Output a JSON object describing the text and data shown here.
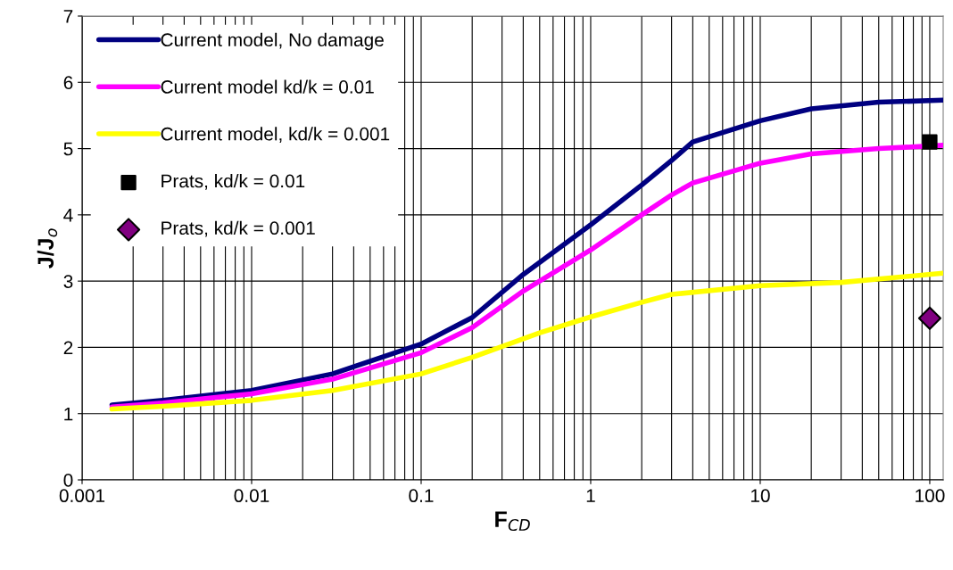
{
  "chart_data": {
    "type": "line",
    "xlabel": "F$_{CD}$",
    "ylabel": "J/J$_{o}$",
    "log": "x",
    "xlim": [
      0.001,
      120
    ],
    "xticks": [
      0.001,
      0.01,
      0.1,
      1,
      10,
      100
    ],
    "ylim": [
      0,
      7
    ],
    "yticks": [
      0,
      1,
      2,
      3,
      4,
      5,
      6,
      7
    ],
    "grid": true,
    "legend": "top left",
    "series": [
      {
        "name": "Current model, No damage",
        "color": "#000080",
        "x": [
          0.0015,
          0.003,
          0.01,
          0.03,
          0.1,
          0.2,
          0.4,
          1,
          2,
          3,
          4,
          10,
          20,
          50,
          120
        ],
        "values": [
          1.13,
          1.2,
          1.35,
          1.6,
          2.05,
          2.45,
          3.1,
          3.85,
          4.45,
          4.82,
          5.1,
          5.42,
          5.6,
          5.7,
          5.73
        ]
      },
      {
        "name": "Current model kd/k = 0.01",
        "color": "#ff00ff",
        "x": [
          0.0015,
          0.003,
          0.01,
          0.03,
          0.1,
          0.2,
          0.4,
          1,
          2,
          3,
          4,
          10,
          20,
          50,
          120
        ],
        "values": [
          1.1,
          1.16,
          1.3,
          1.52,
          1.92,
          2.3,
          2.85,
          3.47,
          4.0,
          4.3,
          4.48,
          4.78,
          4.92,
          5.0,
          5.05
        ]
      },
      {
        "name": "Current model, kd/k = 0.001",
        "color": "#ffff00",
        "x": [
          0.0015,
          0.003,
          0.01,
          0.03,
          0.1,
          0.2,
          0.5,
          1,
          2,
          3,
          10,
          30,
          120
        ],
        "values": [
          1.07,
          1.11,
          1.2,
          1.35,
          1.6,
          1.85,
          2.22,
          2.46,
          2.68,
          2.8,
          2.93,
          2.98,
          3.12
        ]
      },
      {
        "name": "Prats, kd/k = 0.01",
        "type": "scatter",
        "marker": "square",
        "color": "#000000",
        "x": [
          100
        ],
        "values": [
          5.1
        ]
      },
      {
        "name": "Prats, kd/k = 0.001",
        "type": "scatter",
        "marker": "diamond",
        "color": "#800080",
        "x": [
          100
        ],
        "values": [
          2.44
        ]
      }
    ]
  }
}
